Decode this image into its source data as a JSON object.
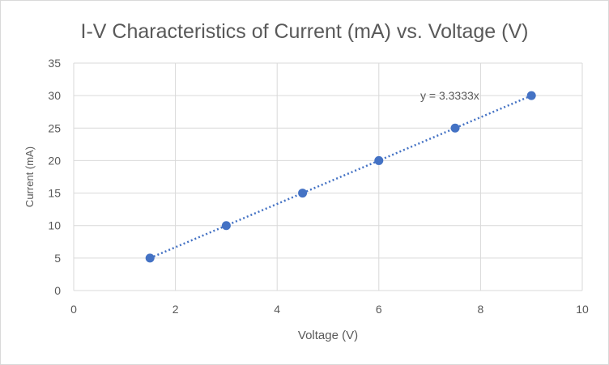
{
  "chart_data": {
    "type": "scatter",
    "title": "I-V Characteristics of Current (mA) vs. Voltage (V)",
    "xlabel": "Voltage (V)",
    "ylabel": "Current (mA)",
    "xlim": [
      0,
      10
    ],
    "ylim": [
      0,
      35
    ],
    "xticks": [
      0,
      2,
      4,
      6,
      8,
      10
    ],
    "yticks": [
      0,
      5,
      10,
      15,
      20,
      25,
      30,
      35
    ],
    "grid": true,
    "series": [
      {
        "x": [
          1.5,
          3,
          4.5,
          6,
          7.5,
          9
        ],
        "y": [
          5,
          10,
          15,
          20,
          25,
          30
        ]
      }
    ],
    "trendline": {
      "type": "linear",
      "slope": 3.3333,
      "intercept": 0,
      "x_range": [
        1.5,
        9
      ],
      "equation_label": "y = 3.3333x"
    },
    "colors": {
      "marker": "#4472c4",
      "grid": "#d9d9d9",
      "text": "#595959"
    }
  }
}
